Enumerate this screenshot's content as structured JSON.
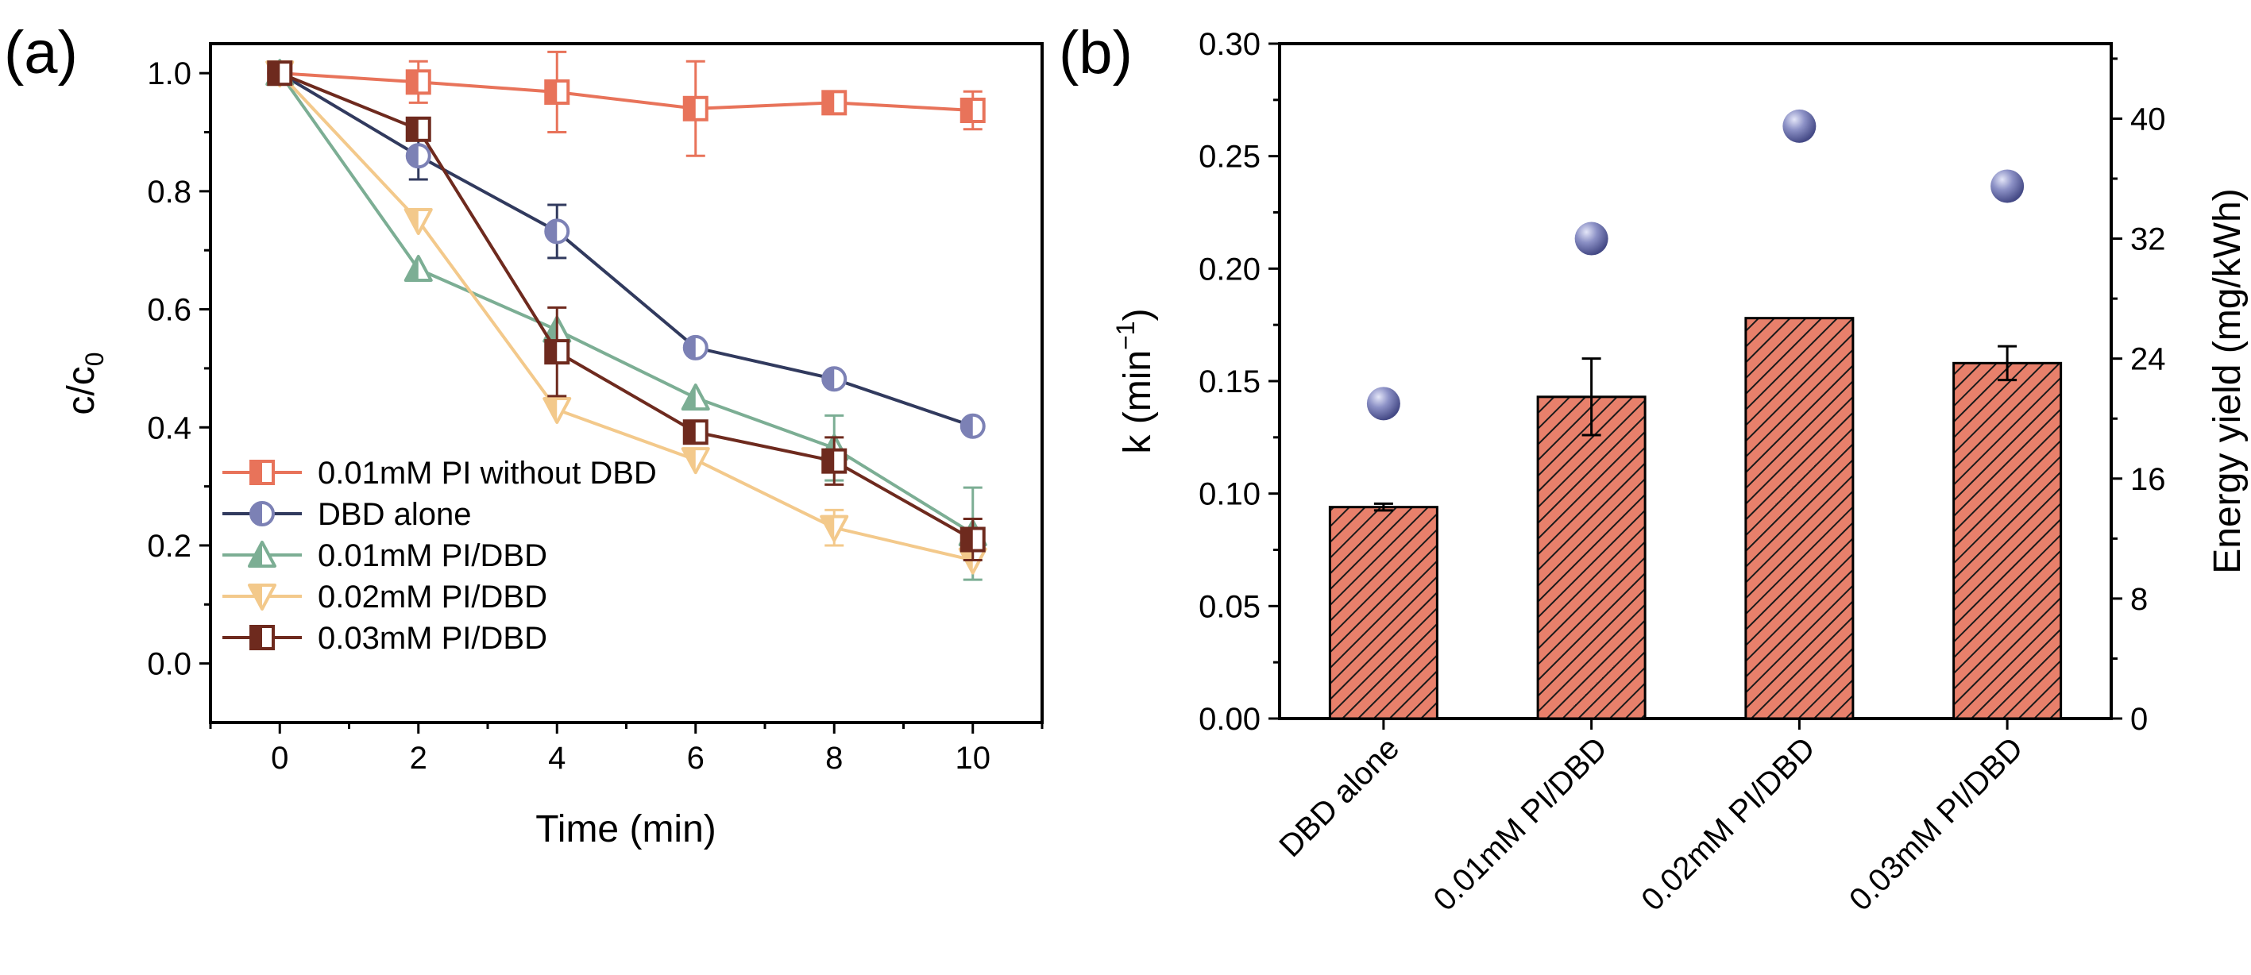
{
  "chart_data": [
    {
      "type": "line",
      "panel_label": "(a)",
      "xlabel": "Time (min)",
      "ylabel_main": "c/c",
      "ylabel_sub": "0",
      "xlim": [
        -1,
        11
      ],
      "ylim": [
        -0.1,
        1.05
      ],
      "xticks": [
        0,
        2,
        4,
        6,
        8,
        10
      ],
      "xtick_labels": [
        "0",
        "2",
        "4",
        "6",
        "8",
        "10"
      ],
      "yticks": [
        0.0,
        0.2,
        0.4,
        0.6,
        0.8,
        1.0
      ],
      "ytick_labels": [
        "0.0",
        "0.2",
        "0.4",
        "0.6",
        "0.8",
        "1.0"
      ],
      "legend_position": "bottom-left",
      "x": [
        0,
        2,
        4,
        6,
        8,
        10
      ],
      "series": [
        {
          "name": "0.01mM PI without DBD",
          "color": "#E8735A",
          "marker": "square",
          "values": [
            1.0,
            0.985,
            0.968,
            0.94,
            0.95,
            0.937
          ],
          "errors": [
            0.0,
            0.035,
            0.068,
            0.08,
            0.015,
            0.032
          ]
        },
        {
          "name": "DBD alone",
          "color": "#313A5E",
          "marker": "circle",
          "marker_color": "#7C81B5",
          "values": [
            1.0,
            0.86,
            0.732,
            0.535,
            0.482,
            0.402
          ],
          "errors": [
            0.0,
            0.04,
            0.045,
            0.0,
            0.0,
            0.0
          ]
        },
        {
          "name": "0.01mM PI/DBD",
          "color": "#7CAE94",
          "marker": "triangle-up",
          "values": [
            1.0,
            0.668,
            0.565,
            0.45,
            0.365,
            0.22
          ],
          "errors": [
            0.0,
            0.0,
            0.0,
            0.0,
            0.055,
            0.078
          ]
        },
        {
          "name": "0.02mM PI/DBD",
          "color": "#F3C98B",
          "marker": "triangle-down",
          "values": [
            1.0,
            0.75,
            0.43,
            0.345,
            0.23,
            0.175
          ],
          "errors": [
            0.0,
            0.0,
            0.0,
            0.0,
            0.03,
            0.0
          ]
        },
        {
          "name": "0.03mM PI/DBD",
          "color": "#6E2A1E",
          "marker": "square",
          "values": [
            1.0,
            0.905,
            0.528,
            0.392,
            0.343,
            0.21
          ],
          "errors": [
            0.0,
            0.0,
            0.075,
            0.0,
            0.04,
            0.035
          ]
        }
      ]
    },
    {
      "type": "bar",
      "panel_label": "(b)",
      "categories": [
        "DBD alone",
        "0.01mM PI/DBD",
        "0.02mM PI/DBD",
        "0.03mM PI/DBD"
      ],
      "series": [
        {
          "name": "k",
          "axis": "left",
          "values": [
            0.094,
            0.143,
            0.178,
            0.158
          ],
          "errors": [
            0.0015,
            0.017,
            0.0,
            0.0075
          ],
          "color": "#E8806B",
          "pattern": "diagonal-hatch"
        },
        {
          "name": "Energy yield",
          "axis": "right",
          "type": "scatter",
          "values": [
            21.0,
            32.0,
            39.5,
            35.5
          ],
          "color": "#7C81B5"
        }
      ],
      "ylabel_left_main": "k (min",
      "ylabel_left_sup": "−1",
      "ylabel_left_end": ")",
      "ylabel_right": "Energy yield (mg/kWh)",
      "ylim_left": [
        0,
        0.3
      ],
      "ylim_right": [
        0,
        45
      ],
      "yticks_left": [
        0.0,
        0.05,
        0.1,
        0.15,
        0.2,
        0.25,
        0.3
      ],
      "ytick_labels_left": [
        "0.00",
        "0.05",
        "0.10",
        "0.15",
        "0.20",
        "0.25",
        "0.30"
      ],
      "yticks_right": [
        0,
        8,
        16,
        24,
        32,
        40
      ],
      "ytick_labels_right": [
        "0",
        "8",
        "16",
        "24",
        "32",
        "40"
      ]
    }
  ]
}
